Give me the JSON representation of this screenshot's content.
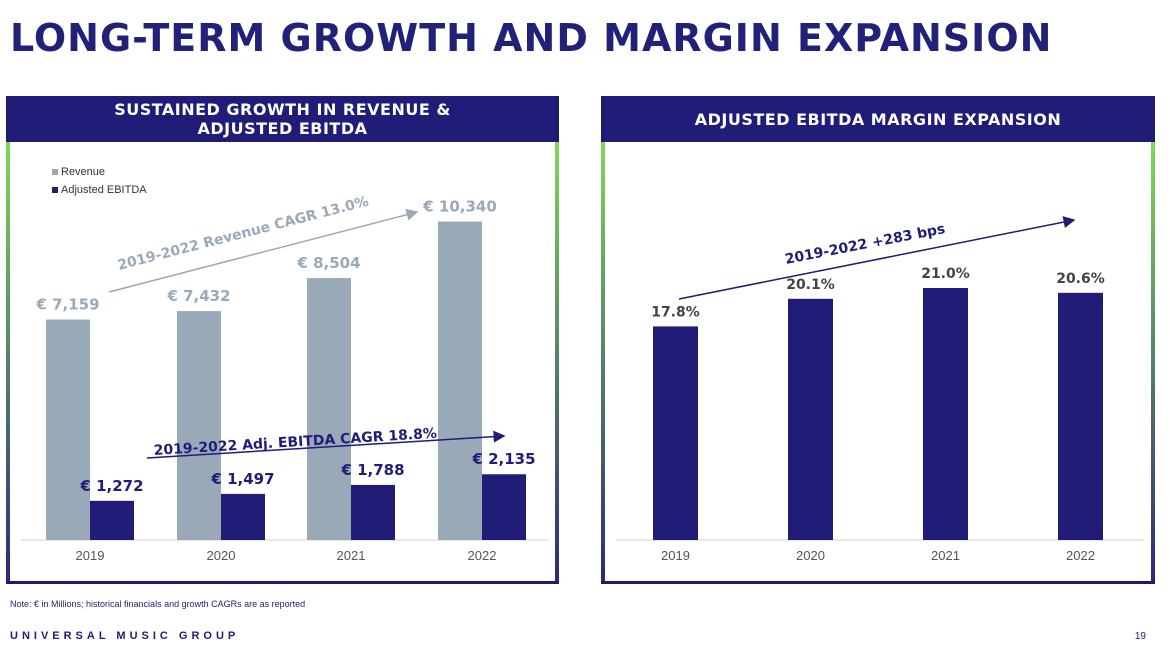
{
  "title": "LONG-TERM GROWTH AND MARGIN EXPANSION",
  "left_panel": {
    "header_line1": "SUSTAINED GROWTH IN REVENUE &",
    "header_line2": "ADJUSTED EBITDA"
  },
  "right_panel": {
    "header": "ADJUSTED EBITDA MARGIN EXPANSION"
  },
  "note": "Note: € in Millions; historical financials and growth CAGRs are as reported",
  "brand": "UNIVERSAL MUSIC GROUP",
  "page_number": "19",
  "colors": {
    "navy": "#201c78",
    "revenue": "#9aa9b8",
    "green": "#7ed957"
  },
  "chart_data": [
    {
      "type": "bar",
      "categories": [
        "2019",
        "2020",
        "2021",
        "2022"
      ],
      "series": [
        {
          "name": "Revenue",
          "values": [
            7159,
            7432,
            8504,
            10340
          ],
          "labels": [
            "€ 7,159",
            "€ 7,432",
            "€ 8,504",
            "€ 10,340"
          ],
          "color": "#9aa9b8"
        },
        {
          "name": "Adjusted EBITDA",
          "values": [
            1272,
            1497,
            1788,
            2135
          ],
          "labels": [
            "€ 1,272",
            "€ 1,497",
            "€ 1,788",
            "€ 2,135"
          ],
          "color": "#201c78"
        }
      ],
      "annotations": [
        "2019-2022 Revenue CAGR 13.0%",
        "2019-2022 Adj. EBITDA CAGR 18.8%"
      ],
      "legend": "top-left"
    },
    {
      "type": "bar",
      "categories": [
        "2019",
        "2020",
        "2021",
        "2022"
      ],
      "values": [
        17.8,
        20.1,
        21.0,
        20.6
      ],
      "labels": [
        "17.8%",
        "20.1%",
        "21.0%",
        "20.6%"
      ],
      "annotation": "2019-2022 +283 bps",
      "color": "#201c78"
    }
  ]
}
